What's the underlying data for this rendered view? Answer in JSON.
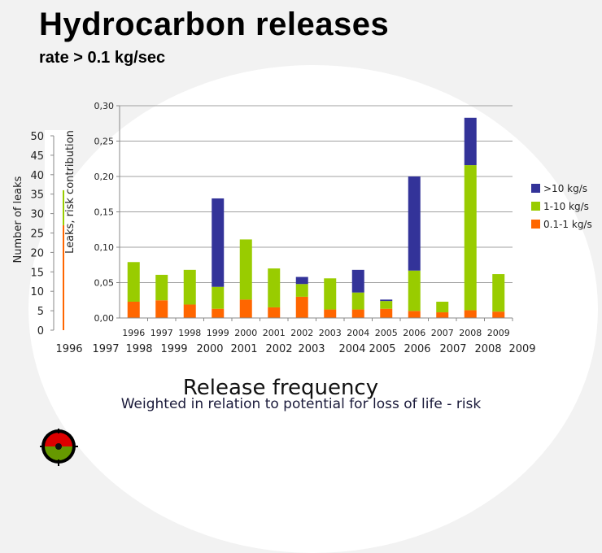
{
  "title": "Hydrocarbon releases",
  "subtitle": "rate > 0.1 kg/sec",
  "caption": "Release frequency",
  "caption_sub": "Weighted in relation to potential for loss of life - risk",
  "left_axis": {
    "ylabel": "Number of leaks",
    "series_label": "Leaks, risk contribution",
    "ticks": [
      "0",
      "5",
      "10",
      "15",
      "20",
      "25",
      "30",
      "35",
      "40",
      "45",
      "50"
    ],
    "ylim": [
      0,
      50
    ],
    "orange_value": 27,
    "green_value": 36,
    "year_labels": [
      "1996",
      "1997",
      "1998",
      "1999",
      "2000",
      "2001",
      "2002",
      "2003",
      "2004",
      "2005",
      "2006",
      "2007",
      "2008",
      "2009"
    ]
  },
  "chart_data": {
    "type": "bar",
    "stacked": true,
    "categories": [
      "1996",
      "1997",
      "1998",
      "1999",
      "2000",
      "2001",
      "2002",
      "2003",
      "2004",
      "2005",
      "2006",
      "2007",
      "2008",
      "2009"
    ],
    "series": [
      {
        "name": "0.1-1 kg/s",
        "color": "#ff6600",
        "values": [
          0.023,
          0.025,
          0.019,
          0.013,
          0.026,
          0.015,
          0.03,
          0.012,
          0.012,
          0.013,
          0.01,
          0.008,
          0.011,
          0.009
        ]
      },
      {
        "name": "1-10 kg/s",
        "color": "#99cc00",
        "values": [
          0.056,
          0.036,
          0.049,
          0.031,
          0.085,
          0.055,
          0.018,
          0.044,
          0.024,
          0.011,
          0.057,
          0.015,
          0.205,
          0.053
        ]
      },
      {
        "name": ">10 kg/s",
        "color": "#333399",
        "values": [
          0,
          0,
          0,
          0.125,
          0,
          0,
          0.01,
          0,
          0.032,
          0.002,
          0.133,
          0,
          0.067,
          0
        ]
      }
    ],
    "yticks": [
      "0,00",
      "0,05",
      "0,10",
      "0,15",
      "0,20",
      "0,25",
      "0,30"
    ],
    "ylim": [
      0,
      0.3
    ],
    "grid": true,
    "legend": [
      ">10 kg/s",
      "1-10 kg/s",
      "0.1-1 kg/s"
    ],
    "legend_placement": "right"
  }
}
